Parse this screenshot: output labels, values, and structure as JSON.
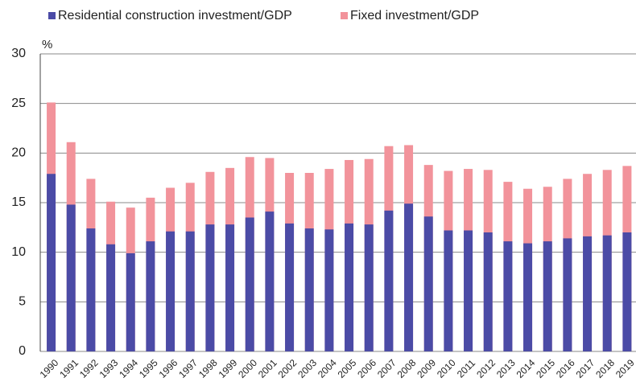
{
  "chart_data": {
    "type": "bar",
    "ylabel": "%",
    "categories": [
      "1990",
      "1991",
      "1992",
      "1993",
      "1994",
      "1995",
      "1996",
      "1997",
      "1998",
      "1999",
      "2000",
      "2001",
      "2002",
      "2003",
      "2004",
      "2005",
      "2006",
      "2007",
      "2008",
      "2009",
      "2010",
      "2011",
      "2012",
      "2013",
      "2014",
      "2015",
      "2016",
      "2017",
      "2018",
      "2019"
    ],
    "series": [
      {
        "name": "Residential construction investment/GDP",
        "color": "#4b4ba6",
        "values": [
          17.9,
          14.8,
          12.4,
          10.8,
          9.9,
          11.1,
          12.1,
          12.1,
          12.8,
          12.8,
          13.5,
          14.1,
          12.9,
          12.4,
          12.3,
          12.9,
          12.8,
          14.2,
          14.9,
          13.6,
          12.2,
          12.2,
          12.0,
          11.1,
          10.9,
          11.1,
          11.4,
          11.6,
          11.7,
          12.0
        ]
      },
      {
        "name": "Fixed investment/GDP",
        "color": "#f2939b",
        "values": [
          25.1,
          21.1,
          17.4,
          15.1,
          14.5,
          15.5,
          16.5,
          17.0,
          18.1,
          18.5,
          19.6,
          19.5,
          18.0,
          18.0,
          18.4,
          19.3,
          19.4,
          20.7,
          20.8,
          18.8,
          18.2,
          18.4,
          18.3,
          17.1,
          16.4,
          16.6,
          17.4,
          17.9,
          18.3,
          18.7
        ]
      }
    ],
    "ylim": [
      0,
      30
    ],
    "yticks": [
      0,
      5,
      10,
      15,
      20,
      25,
      30
    ],
    "grid": true
  }
}
